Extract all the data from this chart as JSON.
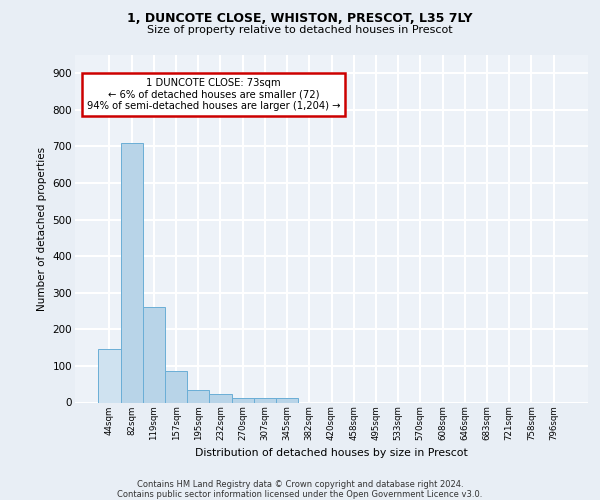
{
  "title_line1": "1, DUNCOTE CLOSE, WHISTON, PRESCOT, L35 7LY",
  "title_line2": "Size of property relative to detached houses in Prescot",
  "xlabel": "Distribution of detached houses by size in Prescot",
  "ylabel": "Number of detached properties",
  "categories": [
    "44sqm",
    "82sqm",
    "119sqm",
    "157sqm",
    "195sqm",
    "232sqm",
    "270sqm",
    "307sqm",
    "345sqm",
    "382sqm",
    "420sqm",
    "458sqm",
    "495sqm",
    "533sqm",
    "570sqm",
    "608sqm",
    "646sqm",
    "683sqm",
    "721sqm",
    "758sqm",
    "796sqm"
  ],
  "values": [
    145,
    710,
    262,
    85,
    35,
    22,
    13,
    12,
    11,
    0,
    0,
    0,
    0,
    0,
    0,
    0,
    0,
    0,
    0,
    0,
    0
  ],
  "bar_color": "#b8d4e8",
  "highlight_bar_color": "#cfe2f0",
  "bar_edge_color": "#6aaed6",
  "ylim": [
    0,
    950
  ],
  "yticks": [
    0,
    100,
    200,
    300,
    400,
    500,
    600,
    700,
    800,
    900
  ],
  "annotation_line1": "1 DUNCOTE CLOSE: 73sqm",
  "annotation_line2": "← 6% of detached houses are smaller (72)",
  "annotation_line3": "94% of semi-detached houses are larger (1,204) →",
  "annotation_box_color": "#ffffff",
  "annotation_box_edge": "#cc0000",
  "footnote": "Contains HM Land Registry data © Crown copyright and database right 2024.\nContains public sector information licensed under the Open Government Licence v3.0.",
  "bg_color": "#e8eef5",
  "plot_bg_color": "#edf2f8",
  "grid_color": "#ffffff"
}
